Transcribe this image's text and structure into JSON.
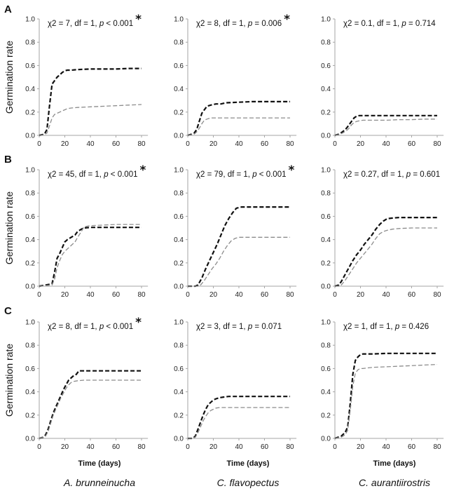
{
  "figure": {
    "row_labels": [
      "A",
      "B",
      "C"
    ],
    "species": [
      "A. brunneinucha",
      "C. flavopectus",
      "C. aurantiirostris"
    ],
    "ylabel": "Germination rate",
    "xlabel": "Time (days)"
  },
  "chart_data": [
    {
      "type": "line",
      "row": "A",
      "species": "A. brunneinucha",
      "stat_parts": [
        "χ2 = 7, df = 1, ",
        "p",
        " < 0.001"
      ],
      "significant": true,
      "xlim": [
        0,
        85
      ],
      "ylim": [
        0,
        1
      ],
      "xticks": [
        0,
        20,
        40,
        60,
        80
      ],
      "yticks": [
        0,
        0.2,
        0.4,
        0.6,
        0.8,
        1.0
      ],
      "series": [
        {
          "color": "black",
          "x": [
            0,
            4,
            6,
            8,
            10,
            12,
            14,
            16,
            18,
            20,
            22,
            25,
            30,
            40,
            50,
            60,
            70,
            80
          ],
          "y": [
            0,
            0.01,
            0.05,
            0.25,
            0.44,
            0.47,
            0.5,
            0.52,
            0.54,
            0.555,
            0.56,
            0.56,
            0.565,
            0.57,
            0.57,
            0.57,
            0.575,
            0.575
          ]
        },
        {
          "color": "gray",
          "x": [
            0,
            4,
            6,
            8,
            10,
            12,
            14,
            16,
            18,
            20,
            22,
            25,
            30,
            40,
            50,
            60,
            70,
            80
          ],
          "y": [
            0,
            0.005,
            0.02,
            0.08,
            0.15,
            0.18,
            0.19,
            0.2,
            0.21,
            0.22,
            0.23,
            0.235,
            0.24,
            0.245,
            0.25,
            0.255,
            0.26,
            0.265
          ]
        }
      ]
    },
    {
      "type": "line",
      "row": "A",
      "species": "C. flavopectus",
      "stat_parts": [
        "χ2 = 8, df = 1, ",
        "p",
        " = 0.006"
      ],
      "significant": true,
      "xlim": [
        0,
        85
      ],
      "ylim": [
        0,
        1
      ],
      "xticks": [
        0,
        20,
        40,
        60,
        80
      ],
      "yticks": [
        0,
        0.2,
        0.4,
        0.6,
        0.8,
        1.0
      ],
      "series": [
        {
          "color": "black",
          "x": [
            0,
            3,
            5,
            7,
            9,
            11,
            13,
            15,
            18,
            22,
            26,
            30,
            40,
            50,
            60,
            70,
            80
          ],
          "y": [
            0,
            0.01,
            0.02,
            0.05,
            0.12,
            0.19,
            0.22,
            0.25,
            0.26,
            0.27,
            0.27,
            0.28,
            0.285,
            0.29,
            0.29,
            0.29,
            0.29
          ]
        },
        {
          "color": "gray",
          "x": [
            0,
            3,
            5,
            7,
            9,
            11,
            13,
            15,
            18,
            22,
            26,
            30,
            40,
            50,
            60,
            70,
            80
          ],
          "y": [
            0,
            0.005,
            0.01,
            0.03,
            0.06,
            0.1,
            0.13,
            0.14,
            0.15,
            0.15,
            0.15,
            0.15,
            0.15,
            0.15,
            0.15,
            0.15,
            0.15
          ]
        }
      ]
    },
    {
      "type": "line",
      "row": "A",
      "species": "C. aurantiirostris",
      "stat_parts": [
        "χ2 = 0.1, df = 1, ",
        "p",
        " = 0.714"
      ],
      "significant": false,
      "xlim": [
        0,
        85
      ],
      "ylim": [
        0,
        1
      ],
      "xticks": [
        0,
        20,
        40,
        60,
        80
      ],
      "yticks": [
        0,
        0.2,
        0.4,
        0.6,
        0.8,
        1.0
      ],
      "series": [
        {
          "color": "black",
          "x": [
            0,
            3,
            6,
            9,
            11,
            13,
            15,
            17,
            19,
            22,
            30,
            40,
            50,
            60,
            70,
            80
          ],
          "y": [
            0,
            0.01,
            0.03,
            0.06,
            0.09,
            0.12,
            0.15,
            0.165,
            0.17,
            0.17,
            0.17,
            0.17,
            0.17,
            0.17,
            0.17,
            0.17
          ]
        },
        {
          "color": "gray",
          "x": [
            0,
            3,
            6,
            9,
            11,
            13,
            15,
            17,
            19,
            22,
            30,
            40,
            50,
            60,
            70,
            80
          ],
          "y": [
            0,
            0.005,
            0.02,
            0.04,
            0.06,
            0.09,
            0.11,
            0.12,
            0.125,
            0.13,
            0.13,
            0.13,
            0.135,
            0.135,
            0.14,
            0.14
          ]
        }
      ]
    },
    {
      "type": "line",
      "row": "B",
      "species": "A. brunneinucha",
      "stat_parts": [
        "χ2 = 45, df = 1, ",
        "p",
        " < 0.001"
      ],
      "significant": true,
      "xlim": [
        0,
        85
      ],
      "ylim": [
        0,
        1
      ],
      "xticks": [
        0,
        20,
        40,
        60,
        80
      ],
      "yticks": [
        0,
        0.2,
        0.4,
        0.6,
        0.8,
        1.0
      ],
      "series": [
        {
          "color": "black",
          "x": [
            0,
            5,
            10,
            12,
            14,
            16,
            18,
            20,
            22,
            25,
            28,
            30,
            33,
            35,
            40,
            50,
            60,
            70,
            80
          ],
          "y": [
            0,
            0.01,
            0.02,
            0.12,
            0.24,
            0.28,
            0.33,
            0.38,
            0.4,
            0.42,
            0.44,
            0.47,
            0.49,
            0.5,
            0.505,
            0.505,
            0.505,
            0.505,
            0.505
          ]
        },
        {
          "color": "gray",
          "x": [
            0,
            5,
            10,
            12,
            14,
            16,
            18,
            20,
            22,
            25,
            28,
            30,
            33,
            35,
            40,
            50,
            60,
            70,
            80
          ],
          "y": [
            0,
            0.005,
            0.01,
            0.06,
            0.16,
            0.22,
            0.27,
            0.3,
            0.32,
            0.35,
            0.38,
            0.42,
            0.47,
            0.51,
            0.52,
            0.525,
            0.53,
            0.53,
            0.53
          ]
        }
      ]
    },
    {
      "type": "line",
      "row": "B",
      "species": "C. flavopectus",
      "stat_parts": [
        "χ2 = 79, df = 1, ",
        "p",
        " < 0.001"
      ],
      "significant": true,
      "xlim": [
        0,
        85
      ],
      "ylim": [
        0,
        1
      ],
      "xticks": [
        0,
        20,
        40,
        60,
        80
      ],
      "yticks": [
        0,
        0.2,
        0.4,
        0.6,
        0.8,
        1.0
      ],
      "series": [
        {
          "color": "black",
          "x": [
            0,
            6,
            8,
            11,
            14,
            17,
            20,
            23,
            26,
            29,
            32,
            35,
            38,
            42,
            50,
            60,
            70,
            80
          ],
          "y": [
            0,
            0,
            0.01,
            0.07,
            0.15,
            0.22,
            0.29,
            0.36,
            0.44,
            0.52,
            0.58,
            0.63,
            0.67,
            0.68,
            0.68,
            0.68,
            0.68,
            0.68
          ]
        },
        {
          "color": "gray",
          "x": [
            0,
            8,
            10,
            13,
            16,
            19,
            22,
            25,
            28,
            31,
            34,
            37,
            40,
            50,
            60,
            70,
            80
          ],
          "y": [
            0,
            0,
            0.01,
            0.05,
            0.1,
            0.15,
            0.19,
            0.24,
            0.3,
            0.35,
            0.39,
            0.41,
            0.42,
            0.42,
            0.42,
            0.42,
            0.42
          ]
        }
      ]
    },
    {
      "type": "line",
      "row": "B",
      "species": "C. aurantiirostris",
      "stat_parts": [
        "χ2 = 0.27, df = 1, ",
        "p",
        " = 0.601"
      ],
      "significant": false,
      "xlim": [
        0,
        85
      ],
      "ylim": [
        0,
        1
      ],
      "xticks": [
        0,
        20,
        40,
        60,
        80
      ],
      "yticks": [
        0,
        0.2,
        0.4,
        0.6,
        0.8,
        1.0
      ],
      "series": [
        {
          "color": "black",
          "x": [
            0,
            3,
            5,
            8,
            11,
            14,
            17,
            20,
            23,
            26,
            29,
            32,
            35,
            38,
            41,
            45,
            50,
            60,
            70,
            80
          ],
          "y": [
            0,
            0.01,
            0.04,
            0.1,
            0.16,
            0.22,
            0.27,
            0.31,
            0.36,
            0.4,
            0.44,
            0.49,
            0.53,
            0.56,
            0.58,
            0.585,
            0.59,
            0.59,
            0.59,
            0.59
          ]
        },
        {
          "color": "gray",
          "x": [
            0,
            3,
            5,
            8,
            11,
            14,
            17,
            20,
            23,
            26,
            29,
            32,
            35,
            38,
            41,
            45,
            50,
            60,
            70,
            80
          ],
          "y": [
            0,
            0,
            0.01,
            0.05,
            0.1,
            0.15,
            0.2,
            0.24,
            0.28,
            0.32,
            0.36,
            0.41,
            0.45,
            0.47,
            0.48,
            0.49,
            0.495,
            0.5,
            0.5,
            0.5
          ]
        }
      ]
    },
    {
      "type": "line",
      "row": "C",
      "species": "A. brunneinucha",
      "stat_parts": [
        "χ2 = 8, df = 1, ",
        "p",
        " < 0.001"
      ],
      "significant": true,
      "xlim": [
        0,
        85
      ],
      "ylim": [
        0,
        1
      ],
      "xticks": [
        0,
        20,
        40,
        60,
        80
      ],
      "yticks": [
        0,
        0.2,
        0.4,
        0.6,
        0.8,
        1.0
      ],
      "series": [
        {
          "color": "black",
          "x": [
            0,
            3,
            5,
            7,
            9,
            11,
            13,
            15,
            17,
            19,
            21,
            23,
            25,
            27,
            29,
            31,
            35,
            40,
            50,
            60,
            70,
            80
          ],
          "y": [
            0,
            0.01,
            0.03,
            0.08,
            0.15,
            0.22,
            0.27,
            0.32,
            0.37,
            0.42,
            0.46,
            0.5,
            0.52,
            0.54,
            0.55,
            0.58,
            0.58,
            0.58,
            0.58,
            0.58,
            0.58,
            0.58
          ]
        },
        {
          "color": "gray",
          "x": [
            0,
            3,
            5,
            7,
            9,
            11,
            13,
            15,
            17,
            19,
            21,
            23,
            25,
            27,
            30,
            35,
            40,
            50,
            60,
            70,
            80
          ],
          "y": [
            0,
            0.01,
            0.02,
            0.06,
            0.13,
            0.2,
            0.25,
            0.3,
            0.35,
            0.39,
            0.43,
            0.46,
            0.48,
            0.49,
            0.495,
            0.5,
            0.5,
            0.5,
            0.5,
            0.5,
            0.5
          ]
        }
      ]
    },
    {
      "type": "line",
      "row": "C",
      "species": "C. flavopectus",
      "stat_parts": [
        "χ2 = 3, df = 1, ",
        "p",
        " = 0.071"
      ],
      "significant": false,
      "xlim": [
        0,
        85
      ],
      "ylim": [
        0,
        1
      ],
      "xticks": [
        0,
        20,
        40,
        60,
        80
      ],
      "yticks": [
        0,
        0.2,
        0.4,
        0.6,
        0.8,
        1.0
      ],
      "series": [
        {
          "color": "black",
          "x": [
            0,
            4,
            6,
            8,
            10,
            12,
            14,
            16,
            18,
            20,
            22,
            25,
            28,
            32,
            40,
            50,
            60,
            70,
            80
          ],
          "y": [
            0,
            0,
            0.02,
            0.08,
            0.14,
            0.2,
            0.25,
            0.29,
            0.31,
            0.33,
            0.34,
            0.35,
            0.355,
            0.36,
            0.36,
            0.36,
            0.36,
            0.36,
            0.36
          ]
        },
        {
          "color": "gray",
          "x": [
            0,
            4,
            6,
            8,
            10,
            12,
            14,
            16,
            18,
            20,
            22,
            25,
            28,
            32,
            40,
            50,
            60,
            70,
            80
          ],
          "y": [
            0,
            0,
            0.01,
            0.05,
            0.1,
            0.15,
            0.19,
            0.22,
            0.24,
            0.25,
            0.26,
            0.265,
            0.265,
            0.265,
            0.265,
            0.265,
            0.265,
            0.265,
            0.265
          ]
        }
      ]
    },
    {
      "type": "line",
      "row": "C",
      "species": "C. aurantiirostris",
      "stat_parts": [
        "χ2 = 1, df = 1, ",
        "p",
        " = 0.426"
      ],
      "significant": false,
      "xlim": [
        0,
        85
      ],
      "ylim": [
        0,
        1
      ],
      "xticks": [
        0,
        20,
        40,
        60,
        80
      ],
      "yticks": [
        0,
        0.2,
        0.4,
        0.6,
        0.8,
        1.0
      ],
      "series": [
        {
          "color": "black",
          "x": [
            0,
            5,
            8,
            10,
            12,
            14,
            16,
            18,
            20,
            22,
            25,
            30,
            40,
            50,
            60,
            70,
            80
          ],
          "y": [
            0,
            0.02,
            0.05,
            0.1,
            0.3,
            0.55,
            0.67,
            0.7,
            0.72,
            0.725,
            0.725,
            0.725,
            0.73,
            0.73,
            0.73,
            0.73,
            0.73
          ]
        },
        {
          "color": "gray",
          "x": [
            0,
            5,
            8,
            10,
            12,
            14,
            16,
            18,
            20,
            22,
            25,
            30,
            40,
            50,
            60,
            70,
            80
          ],
          "y": [
            0,
            0.01,
            0.03,
            0.07,
            0.24,
            0.45,
            0.56,
            0.59,
            0.6,
            0.6,
            0.605,
            0.61,
            0.615,
            0.62,
            0.625,
            0.63,
            0.635
          ]
        }
      ]
    }
  ]
}
